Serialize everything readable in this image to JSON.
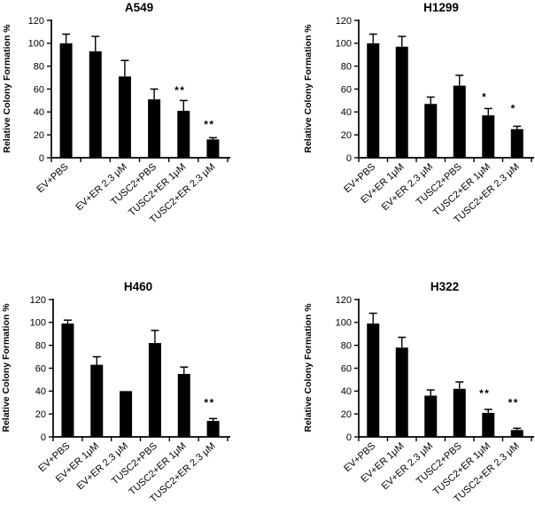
{
  "figure": {
    "background_color": "#ffffff",
    "bar_color": "#000000",
    "axis_color": "#000000",
    "text_color": "#000000"
  },
  "chart_data": [
    {
      "type": "bar",
      "title": "A549",
      "xlabel": "",
      "ylabel": "Relative Colony Formation %",
      "ylim": [
        0,
        120
      ],
      "yticks": [
        0,
        20,
        40,
        60,
        80,
        100,
        120
      ],
      "grid": false,
      "legend": null,
      "categories": [
        "EV+PBS",
        "",
        "EV+ER 2.3 μM",
        "TUSC2+PBS",
        "TUSC2+ER 1μM",
        "TUSC2+ER 2.3 μM"
      ],
      "values": [
        100,
        93,
        71,
        51,
        41,
        16
      ],
      "errors": [
        8,
        13,
        14,
        9,
        9,
        1.5
      ],
      "significance": [
        "",
        "",
        "",
        "",
        "**",
        "**"
      ],
      "significance_y": [
        0,
        0,
        0,
        0,
        62,
        32
      ]
    },
    {
      "type": "bar",
      "title": "H1299",
      "xlabel": "",
      "ylabel": "Relative Colony Formation %",
      "ylim": [
        0,
        120
      ],
      "yticks": [
        0,
        20,
        40,
        60,
        80,
        100,
        120
      ],
      "grid": false,
      "legend": null,
      "categories": [
        "EV+PBS",
        "EV+ER 1μM",
        "EV+ER 2.3 μM",
        "TUSC2+PBS",
        "TUSC2+ER 1μM",
        "TUSC2+ER 2.3 μM"
      ],
      "values": [
        100,
        97,
        47,
        63,
        37,
        25
      ],
      "errors": [
        8,
        9,
        6,
        9,
        6,
        2.5
      ],
      "significance": [
        "",
        "",
        "",
        "",
        "*",
        "*"
      ],
      "significance_y": [
        0,
        0,
        0,
        0,
        56,
        46
      ]
    },
    {
      "type": "bar",
      "title": "H460",
      "xlabel": "",
      "ylabel": "Relative Colony Formation %",
      "ylim": [
        0,
        120
      ],
      "yticks": [
        0,
        20,
        40,
        60,
        80,
        100,
        120
      ],
      "grid": false,
      "legend": null,
      "categories": [
        "EV+PBS",
        "EV+ER 1μM",
        "EV+ER 2.3 μM",
        "TUSC2+PBS",
        "TUSC2+ER 1μM",
        "TUSC2+ER 2.3 μM"
      ],
      "values": [
        99,
        63,
        40,
        82,
        55,
        14
      ],
      "errors": [
        3,
        7,
        0,
        11,
        6,
        2
      ],
      "significance": [
        "",
        "",
        "",
        "",
        "",
        "**"
      ],
      "significance_y": [
        0,
        0,
        0,
        0,
        0,
        33
      ]
    },
    {
      "type": "bar",
      "title": "H322",
      "xlabel": "",
      "ylabel": "Relative Colony Formation %",
      "ylim": [
        0,
        120
      ],
      "yticks": [
        0,
        20,
        40,
        60,
        80,
        100,
        120
      ],
      "grid": false,
      "legend": null,
      "categories": [
        "EV+PBS",
        "EV+ER 1μM",
        "EV+ER 2.3 μM",
        "TUSC2+PBS",
        "TUSC2+ER 1μM",
        "TUSC2+ER 2.3 μM"
      ],
      "values": [
        99,
        78,
        36,
        42,
        21,
        6
      ],
      "errors": [
        9,
        9,
        5,
        6,
        3,
        1.5
      ],
      "significance": [
        "",
        "",
        "",
        "",
        "**",
        "**"
      ],
      "significance_y": [
        0,
        0,
        0,
        0,
        41,
        33
      ]
    }
  ]
}
